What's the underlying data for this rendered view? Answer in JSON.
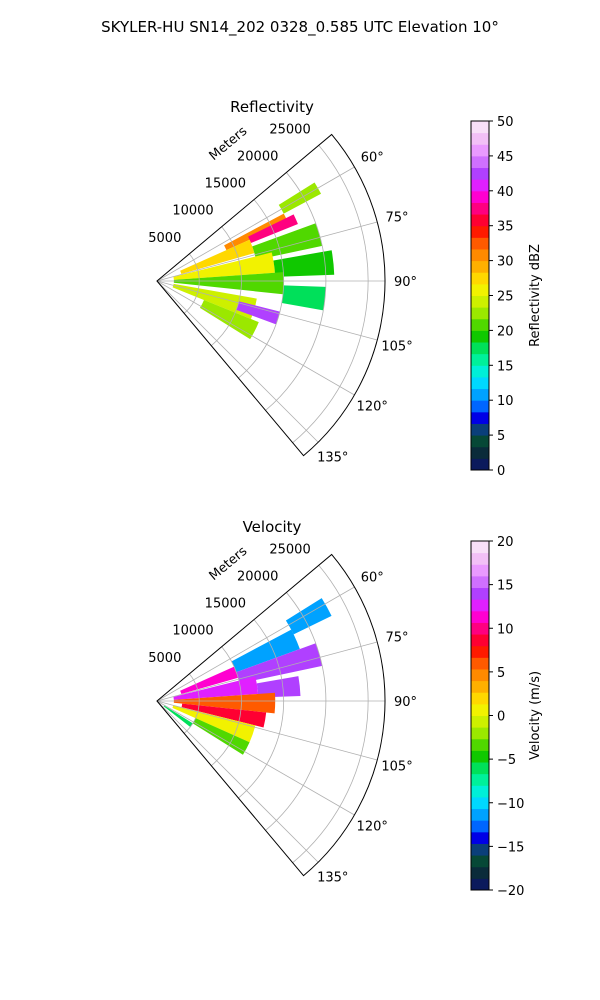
{
  "figure": {
    "suptitle": "SKYLER-HU  SN14_202  0328_0.585 UTC Elevation 10°"
  },
  "chart_data": [
    {
      "type": "heatmap",
      "projection": "polar-sector",
      "title": "Reflectivity",
      "range_label": "Meters",
      "range_max": 27000,
      "range_ticks": [
        5000,
        10000,
        15000,
        20000,
        25000
      ],
      "range_tick_labels": [
        "5000",
        "10000",
        "15000",
        "20000",
        "25000"
      ],
      "azimuth_range": [
        50,
        140
      ],
      "azimuth_ticks": [
        60,
        75,
        90,
        105,
        120,
        135
      ],
      "azimuth_tick_labels": [
        "60°",
        "75°",
        "90°",
        "105°",
        "120°",
        "135°"
      ],
      "grid": true,
      "colorbar": {
        "label": "Reflectivity dBZ",
        "min": 0,
        "max": 50,
        "ticks": [
          0,
          5,
          10,
          15,
          20,
          25,
          30,
          35,
          40,
          45,
          50
        ],
        "tick_labels": [
          "0",
          "5",
          "10",
          "15",
          "20",
          "25",
          "30",
          "35",
          "40",
          "45",
          "50"
        ],
        "colors": [
          "#0b1a5c",
          "#0a2b3a",
          "#064836",
          "#0a3f7a",
          "#0000e6",
          "#0066ff",
          "#00a2ff",
          "#00d8ff",
          "#00f0d8",
          "#00f09a",
          "#00e05a",
          "#10c800",
          "#50d800",
          "#9be800",
          "#cdf000",
          "#f2f200",
          "#ffd800",
          "#ffb000",
          "#ff8a00",
          "#ff5a00",
          "#ff1a00",
          "#ff0032",
          "#ff0080",
          "#ff00d0",
          "#e020ff",
          "#b040ff",
          "#d070ff",
          "#ea9aff",
          "#f2c0f6",
          "#f8e0f8"
        ]
      },
      "sectors": [
        {
          "az": [
            58,
            62
          ],
          "r": [
            17000,
            22000
          ],
          "value": 22
        },
        {
          "az": [
            62,
            66
          ],
          "r": [
            9000,
            17000
          ],
          "value": 30
        },
        {
          "az": [
            64,
            68
          ],
          "r": [
            12000,
            18000
          ],
          "value": 37
        },
        {
          "az": [
            66,
            74
          ],
          "r": [
            3000,
            12000
          ],
          "value": 27
        },
        {
          "az": [
            70,
            78
          ],
          "r": [
            12000,
            20000
          ],
          "value": 20
        },
        {
          "az": [
            76,
            86
          ],
          "r": [
            2000,
            14000
          ],
          "value": 26
        },
        {
          "az": [
            80,
            88
          ],
          "r": [
            14000,
            21000
          ],
          "value": 19
        },
        {
          "az": [
            86,
            96
          ],
          "r": [
            2000,
            15000
          ],
          "value": 21
        },
        {
          "az": [
            92,
            100
          ],
          "r": [
            15000,
            20000
          ],
          "value": 18
        },
        {
          "az": [
            100,
            112
          ],
          "r": [
            2000,
            12000
          ],
          "value": 24
        },
        {
          "az": [
            104,
            110
          ],
          "r": [
            10000,
            15000
          ],
          "value": 42
        },
        {
          "az": [
            112,
            122
          ],
          "r": [
            6000,
            13000
          ],
          "value": 22
        }
      ]
    },
    {
      "type": "heatmap",
      "projection": "polar-sector",
      "title": "Velocity",
      "range_label": "Meters",
      "range_max": 27000,
      "range_ticks": [
        5000,
        10000,
        15000,
        20000,
        25000
      ],
      "range_tick_labels": [
        "5000",
        "10000",
        "15000",
        "20000",
        "25000"
      ],
      "azimuth_range": [
        50,
        140
      ],
      "azimuth_ticks": [
        60,
        75,
        90,
        105,
        120,
        135
      ],
      "azimuth_tick_labels": [
        "60°",
        "75°",
        "90°",
        "105°",
        "120°",
        "135°"
      ],
      "grid": true,
      "colorbar": {
        "label": "Velocity (m/s)",
        "min": -20,
        "max": 20,
        "ticks": [
          -20,
          -15,
          -10,
          -5,
          0,
          5,
          10,
          15,
          20
        ],
        "tick_labels": [
          "−20",
          "−15",
          "−10",
          "−5",
          "0",
          "5",
          "10",
          "15",
          "20"
        ],
        "colors": [
          "#0b1a5c",
          "#0a2b3a",
          "#064836",
          "#0a3f7a",
          "#0000e6",
          "#0066ff",
          "#00a2ff",
          "#00d8ff",
          "#00f0d8",
          "#00f09a",
          "#00e05a",
          "#10c800",
          "#50d800",
          "#9be800",
          "#cdf000",
          "#f2f200",
          "#ffd800",
          "#ffb000",
          "#ff8a00",
          "#ff5a00",
          "#ff1a00",
          "#ff0032",
          "#ff0080",
          "#ff00d0",
          "#e020ff",
          "#b040ff",
          "#d070ff",
          "#ea9aff",
          "#f2c0f6",
          "#f8e0f8"
        ]
      },
      "sectors": [
        {
          "az": [
            58,
            64
          ],
          "r": [
            18000,
            23000
          ],
          "value": -12
        },
        {
          "az": [
            62,
            70
          ],
          "r": [
            10000,
            18000
          ],
          "value": -12
        },
        {
          "az": [
            66,
            74
          ],
          "r": [
            3000,
            10000
          ],
          "value": 11
        },
        {
          "az": [
            70,
            78
          ],
          "r": [
            10000,
            20000
          ],
          "value": 14
        },
        {
          "az": [
            76,
            86
          ],
          "r": [
            2000,
            12000
          ],
          "value": 12
        },
        {
          "az": [
            80,
            88
          ],
          "r": [
            12000,
            17000
          ],
          "value": 14
        },
        {
          "az": [
            86,
            96
          ],
          "r": [
            2000,
            14000
          ],
          "value": 6
        },
        {
          "az": [
            96,
            104
          ],
          "r": [
            3000,
            13000
          ],
          "value": 8
        },
        {
          "az": [
            104,
            114
          ],
          "r": [
            2000,
            12000
          ],
          "value": 1
        },
        {
          "az": [
            114,
            122
          ],
          "r": [
            5000,
            12000
          ],
          "value": -3
        },
        {
          "az": [
            122,
            128
          ],
          "r": [
            1000,
            5000
          ],
          "value": -6
        }
      ]
    }
  ]
}
